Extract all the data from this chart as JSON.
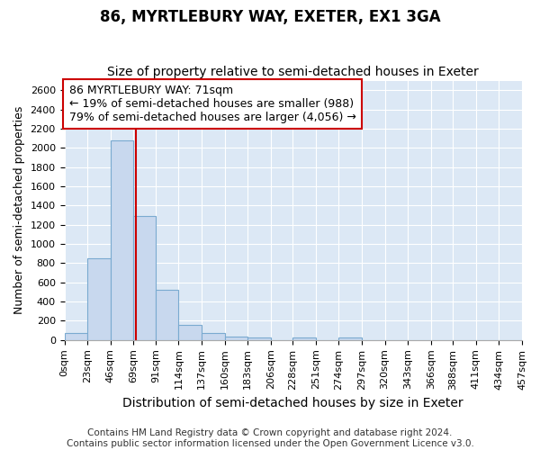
{
  "title": "86, MYRTLEBURY WAY, EXETER, EX1 3GA",
  "subtitle": "Size of property relative to semi-detached houses in Exeter",
  "xlabel": "Distribution of semi-detached houses by size in Exeter",
  "ylabel": "Number of semi-detached properties",
  "bar_color": "#c8d8ee",
  "bar_edge_color": "#7aaad0",
  "background_color": "#dce8f5",
  "grid_color": "#ffffff",
  "annotation_box_color": "#cc0000",
  "property_line_color": "#cc0000",
  "property_value": 71,
  "annotation_text": "86 MYRTLEBURY WAY: 71sqm\n← 19% of semi-detached houses are smaller (988)\n79% of semi-detached houses are larger (4,056) →",
  "bin_edges": [
    0,
    23,
    46,
    69,
    91,
    114,
    137,
    160,
    183,
    206,
    228,
    251,
    274,
    297,
    320,
    343,
    366,
    388,
    411,
    434,
    457
  ],
  "bin_labels": [
    "0sqm",
    "23sqm",
    "46sqm",
    "69sqm",
    "91sqm",
    "114sqm",
    "137sqm",
    "160sqm",
    "183sqm",
    "206sqm",
    "228sqm",
    "251sqm",
    "274sqm",
    "297sqm",
    "320sqm",
    "343sqm",
    "366sqm",
    "388sqm",
    "411sqm",
    "434sqm",
    "457sqm"
  ],
  "bar_heights": [
    75,
    850,
    2075,
    1290,
    520,
    160,
    75,
    40,
    25,
    0,
    25,
    0,
    25,
    0,
    0,
    0,
    0,
    0,
    0,
    0
  ],
  "ylim": [
    0,
    2700
  ],
  "yticks": [
    0,
    200,
    400,
    600,
    800,
    1000,
    1200,
    1400,
    1600,
    1800,
    2000,
    2200,
    2400,
    2600
  ],
  "footer_text": "Contains HM Land Registry data © Crown copyright and database right 2024.\nContains public sector information licensed under the Open Government Licence v3.0.",
  "title_fontsize": 12,
  "subtitle_fontsize": 10,
  "xlabel_fontsize": 10,
  "ylabel_fontsize": 9,
  "tick_fontsize": 8,
  "annotation_fontsize": 9,
  "footer_fontsize": 7.5
}
